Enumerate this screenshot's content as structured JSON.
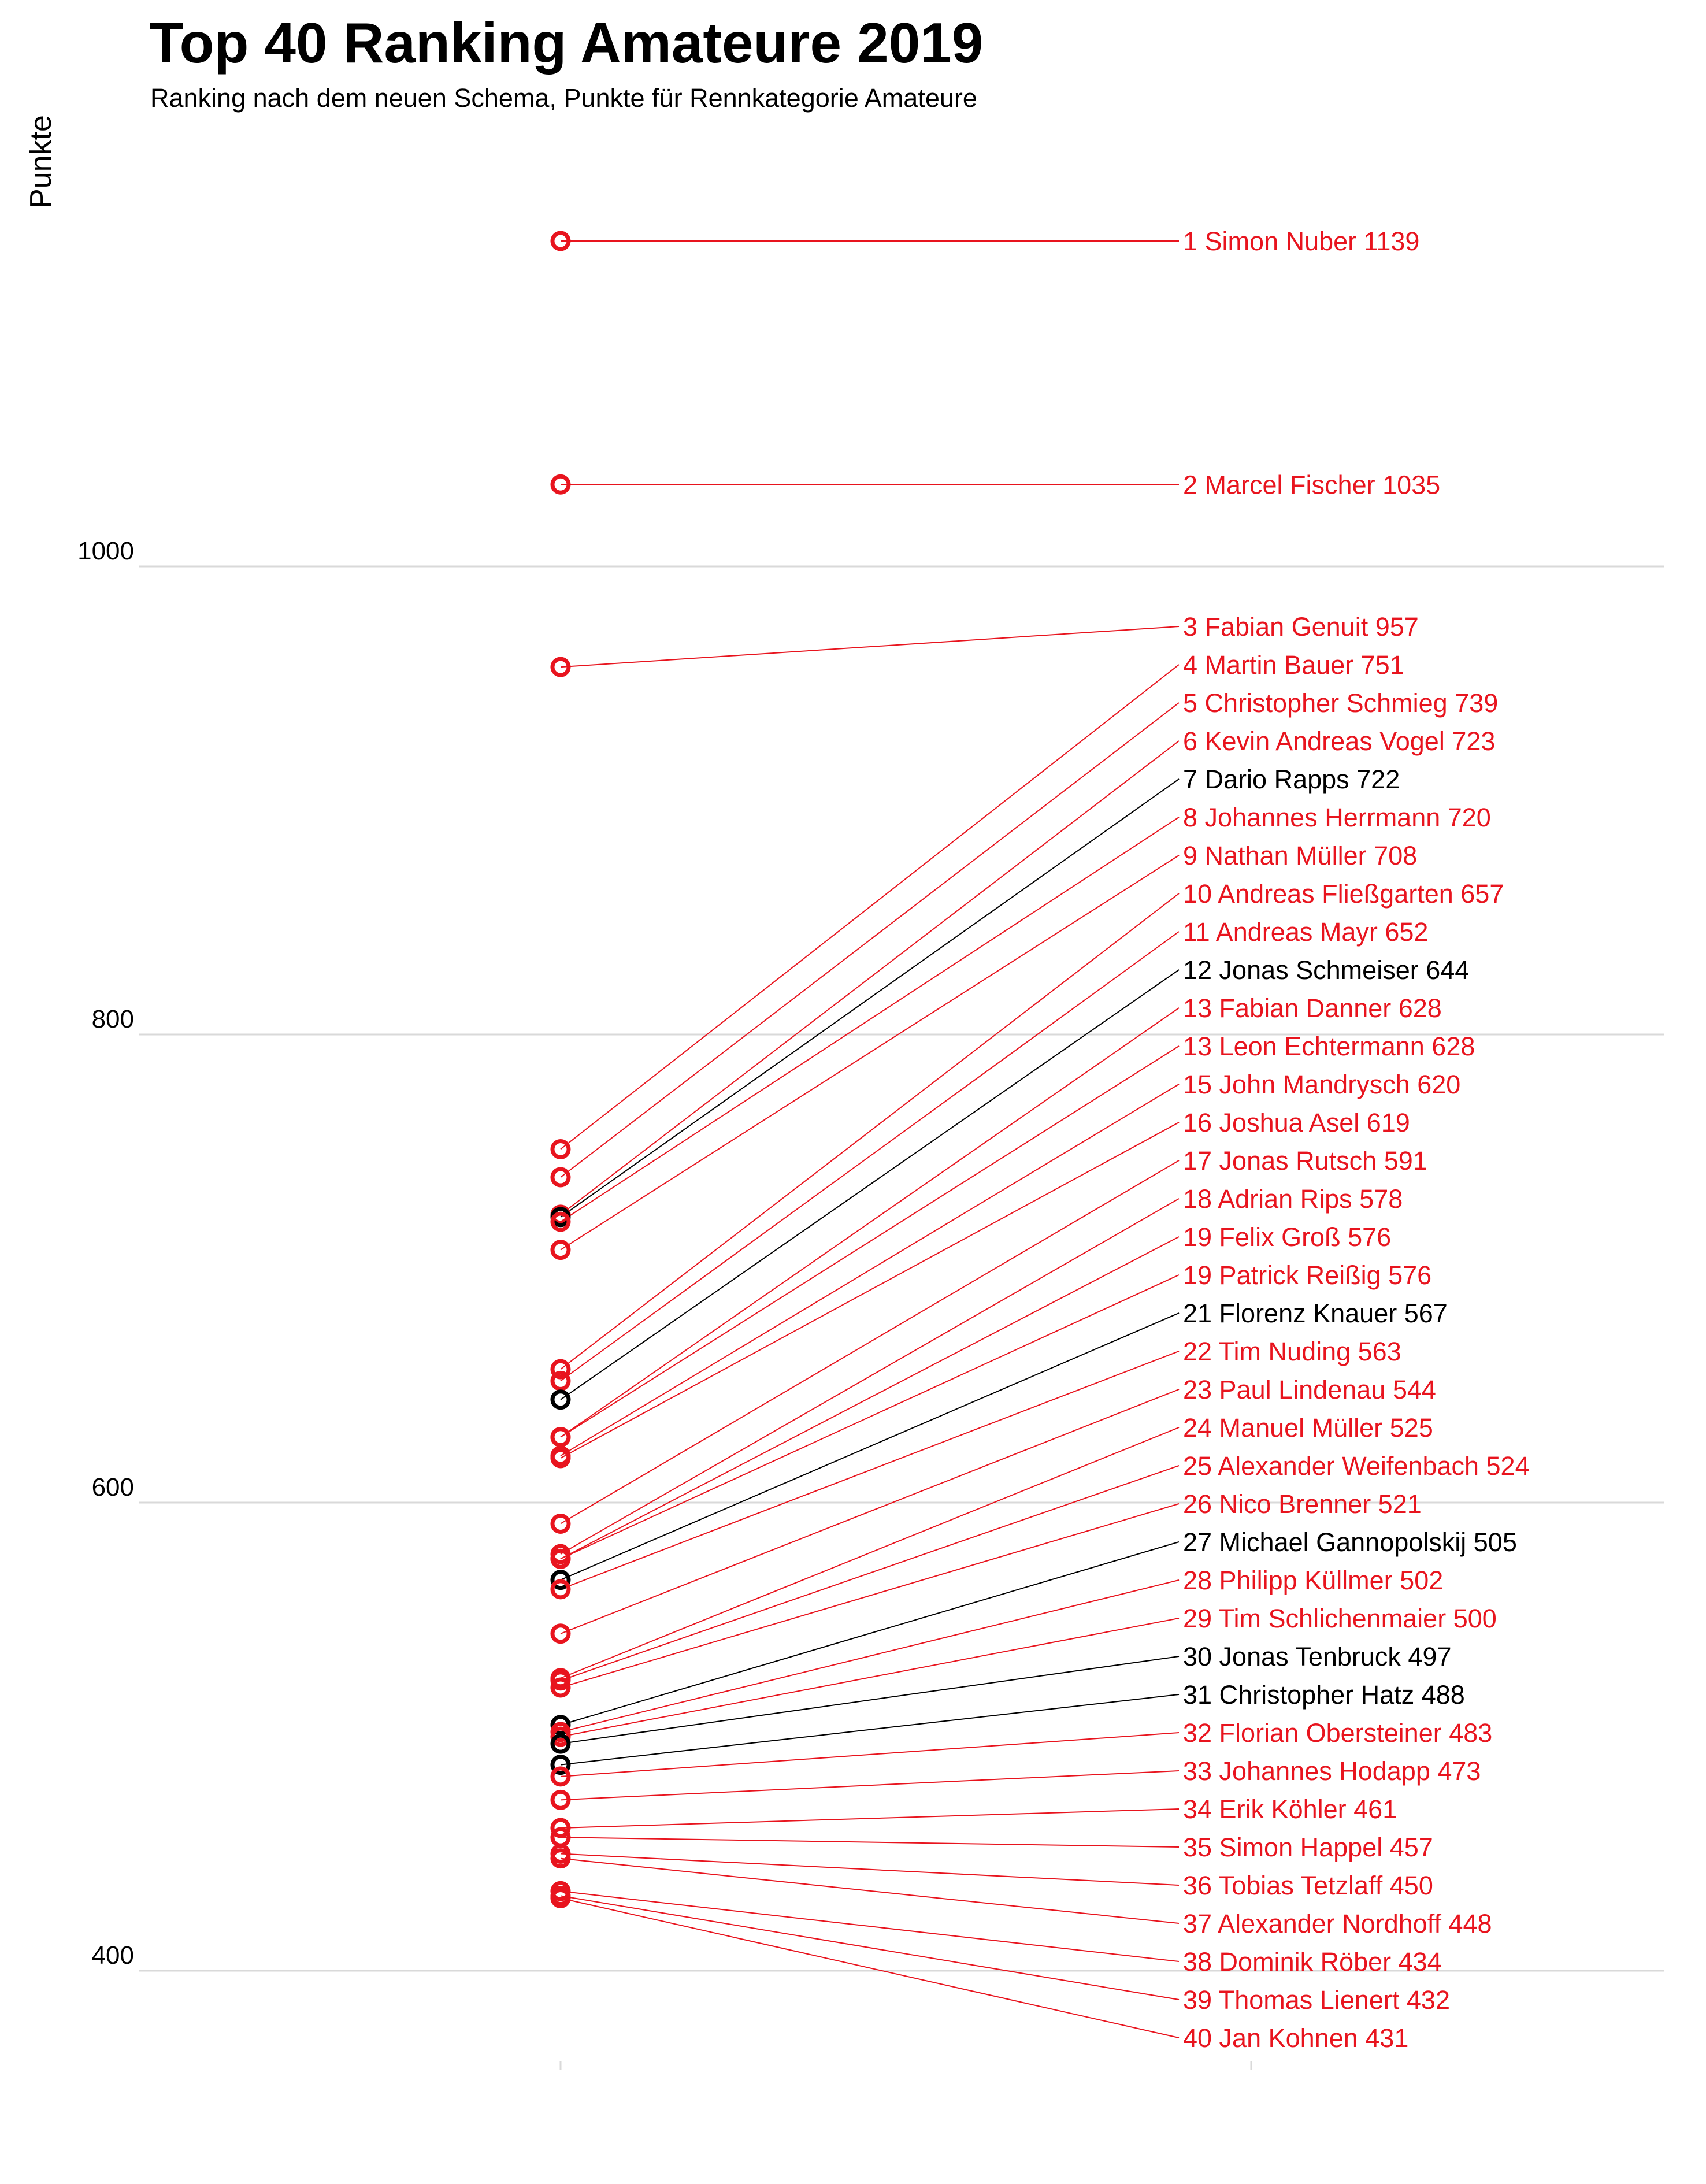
{
  "chart_data": {
    "type": "line",
    "title": "Top 40 Ranking Amateure 2019",
    "subtitle": "Ranking nach dem neuen Schema, Punkte für Rennkategorie Amateure",
    "ylabel": "Punkte",
    "xlabel": "",
    "yticks": [
      "400",
      "600",
      "800",
      "1000"
    ],
    "ytick_values": [
      400,
      600,
      800,
      1000
    ],
    "ylim": [
      360,
      1185
    ],
    "grid": true,
    "colors": {
      "highlight": "#e8141e",
      "default": "#000000",
      "grid": "#d9d9d9"
    },
    "series": [
      {
        "label": "1 Simon Nuber 1139",
        "value": 1139,
        "color": "red"
      },
      {
        "label": "2 Marcel Fischer 1035",
        "value": 1035,
        "color": "red"
      },
      {
        "label": "3 Fabian Genuit 957",
        "value": 957,
        "color": "red"
      },
      {
        "label": "4 Martin Bauer 751",
        "value": 751,
        "color": "red"
      },
      {
        "label": "5 Christopher Schmieg 739",
        "value": 739,
        "color": "red"
      },
      {
        "label": "6 Kevin Andreas Vogel 723",
        "value": 723,
        "color": "red"
      },
      {
        "label": "7 Dario Rapps 722",
        "value": 722,
        "color": "black"
      },
      {
        "label": "8 Johannes Herrmann 720",
        "value": 720,
        "color": "red"
      },
      {
        "label": "9 Nathan Müller 708",
        "value": 708,
        "color": "red"
      },
      {
        "label": "10 Andreas Fließgarten 657",
        "value": 657,
        "color": "red"
      },
      {
        "label": "11 Andreas Mayr 652",
        "value": 652,
        "color": "red"
      },
      {
        "label": "12 Jonas Schmeiser 644",
        "value": 644,
        "color": "black"
      },
      {
        "label": "13 Fabian Danner 628",
        "value": 628,
        "color": "red"
      },
      {
        "label": "13 Leon Echtermann 628",
        "value": 628,
        "color": "red"
      },
      {
        "label": "15 John Mandrysch 620",
        "value": 620,
        "color": "red"
      },
      {
        "label": "16 Joshua Asel 619",
        "value": 619,
        "color": "red"
      },
      {
        "label": "17 Jonas Rutsch 591",
        "value": 591,
        "color": "red"
      },
      {
        "label": "18 Adrian Rips 578",
        "value": 578,
        "color": "red"
      },
      {
        "label": "19 Felix Groß 576",
        "value": 576,
        "color": "red"
      },
      {
        "label": "19 Patrick Reißig 576",
        "value": 576,
        "color": "red"
      },
      {
        "label": "21 Florenz Knauer 567",
        "value": 567,
        "color": "black"
      },
      {
        "label": "22 Tim Nuding 563",
        "value": 563,
        "color": "red"
      },
      {
        "label": "23 Paul Lindenau 544",
        "value": 544,
        "color": "red"
      },
      {
        "label": "24 Manuel Müller 525",
        "value": 525,
        "color": "red"
      },
      {
        "label": "25 Alexander Weifenbach 524",
        "value": 524,
        "color": "red"
      },
      {
        "label": "26 Nico Brenner 521",
        "value": 521,
        "color": "red"
      },
      {
        "label": "27 Michael Gannopolskij 505",
        "value": 505,
        "color": "black"
      },
      {
        "label": "28 Philipp Küllmer 502",
        "value": 502,
        "color": "red"
      },
      {
        "label": "29 Tim Schlichenmaier 500",
        "value": 500,
        "color": "red"
      },
      {
        "label": "30 Jonas Tenbruck 497",
        "value": 497,
        "color": "black"
      },
      {
        "label": "31 Christopher Hatz 488",
        "value": 488,
        "color": "black"
      },
      {
        "label": "32 Florian Obersteiner 483",
        "value": 483,
        "color": "red"
      },
      {
        "label": "33 Johannes Hodapp 473",
        "value": 473,
        "color": "red"
      },
      {
        "label": "34 Erik Köhler 461",
        "value": 461,
        "color": "red"
      },
      {
        "label": "35 Simon Happel 457",
        "value": 457,
        "color": "red"
      },
      {
        "label": "36 Tobias Tetzlaff 450",
        "value": 450,
        "color": "red"
      },
      {
        "label": "37 Alexander Nordhoff 448",
        "value": 448,
        "color": "red"
      },
      {
        "label": "38 Dominik Röber 434",
        "value": 434,
        "color": "red"
      },
      {
        "label": "39 Thomas Lienert 432",
        "value": 432,
        "color": "red"
      },
      {
        "label": "40 Jan Kohnen 431",
        "value": 431,
        "color": "red"
      }
    ]
  }
}
